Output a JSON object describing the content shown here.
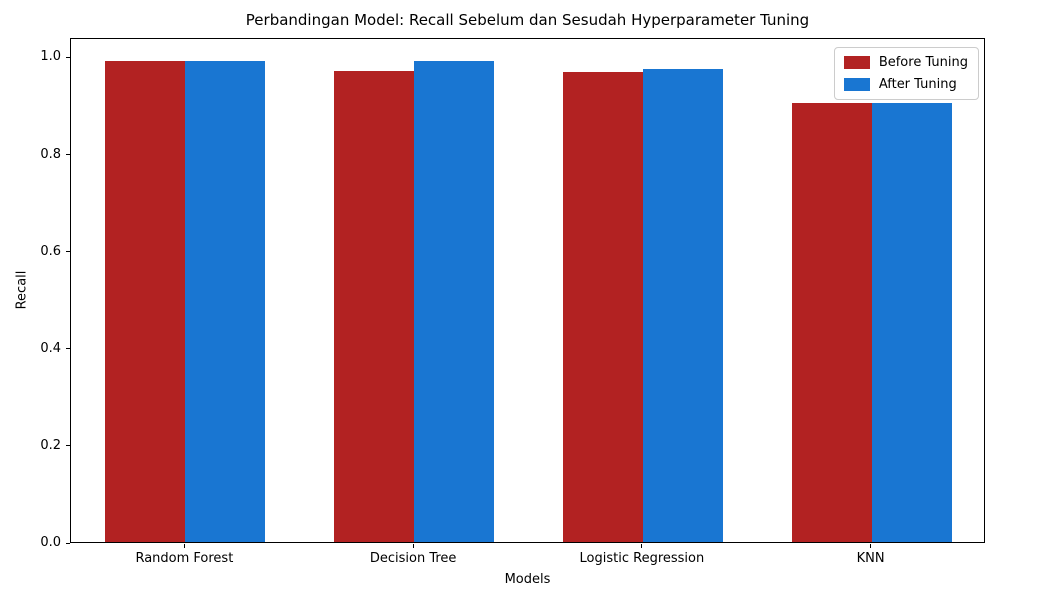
{
  "chart_data": {
    "type": "bar",
    "title": "Perbandingan Model: Recall Sebelum dan Sesudah Hyperparameter Tuning",
    "xlabel": "Models",
    "ylabel": "Recall",
    "categories": [
      "Random Forest",
      "Decision Tree",
      "Logistic Regression",
      "KNN"
    ],
    "series": [
      {
        "name": "Before Tuning",
        "color": "#b22222",
        "values": [
          0.99,
          0.971,
          0.967,
          0.905
        ]
      },
      {
        "name": "After Tuning",
        "color": "#1976d2",
        "values": [
          0.99,
          0.99,
          0.974,
          0.904
        ]
      }
    ],
    "yticks": [
      0.0,
      0.2,
      0.4,
      0.6,
      0.8,
      1.0
    ],
    "ytick_labels": [
      "0.0",
      "0.2",
      "0.4",
      "0.6",
      "0.8",
      "1.0"
    ],
    "ylim": [
      0,
      1.04
    ],
    "bar_width_fraction": 0.35,
    "grid": false,
    "legend_position": "upper right",
    "background_color": "#ffffff",
    "spine_color": "#000000"
  }
}
